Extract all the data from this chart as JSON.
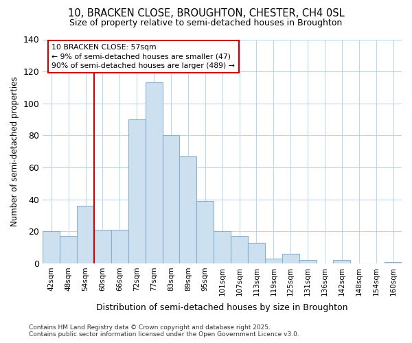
{
  "title_line1": "10, BRACKEN CLOSE, BROUGHTON, CHESTER, CH4 0SL",
  "title_line2": "Size of property relative to semi-detached houses in Broughton",
  "xlabel": "Distribution of semi-detached houses by size in Broughton",
  "ylabel": "Number of semi-detached properties",
  "categories": [
    "42sqm",
    "48sqm",
    "54sqm",
    "60sqm",
    "66sqm",
    "72sqm",
    "77sqm",
    "83sqm",
    "89sqm",
    "95sqm",
    "101sqm",
    "107sqm",
    "113sqm",
    "119sqm",
    "125sqm",
    "131sqm",
    "136sqm",
    "142sqm",
    "148sqm",
    "154sqm",
    "160sqm"
  ],
  "values": [
    20,
    17,
    36,
    21,
    21,
    90,
    113,
    80,
    67,
    39,
    20,
    17,
    13,
    3,
    6,
    2,
    0,
    2,
    0,
    0,
    1
  ],
  "bar_color": "#cce0f0",
  "bar_edge_color": "#8ab0d0",
  "annotation_line1": "10 BRACKEN CLOSE: 57sqm",
  "annotation_line2": "← 9% of semi-detached houses are smaller (47)",
  "annotation_line3": "90% of semi-detached houses are larger (489) →",
  "red_line_index": 2.5,
  "annotation_box_facecolor": "#ffffff",
  "annotation_border_color": "#cc0000",
  "footnote": "Contains HM Land Registry data © Crown copyright and database right 2025.\nContains public sector information licensed under the Open Government Licence v3.0.",
  "ylim": [
    0,
    140
  ],
  "yticks": [
    0,
    20,
    40,
    60,
    80,
    100,
    120,
    140
  ],
  "background_color": "#ffffff",
  "grid_color": "#b8d8f0"
}
